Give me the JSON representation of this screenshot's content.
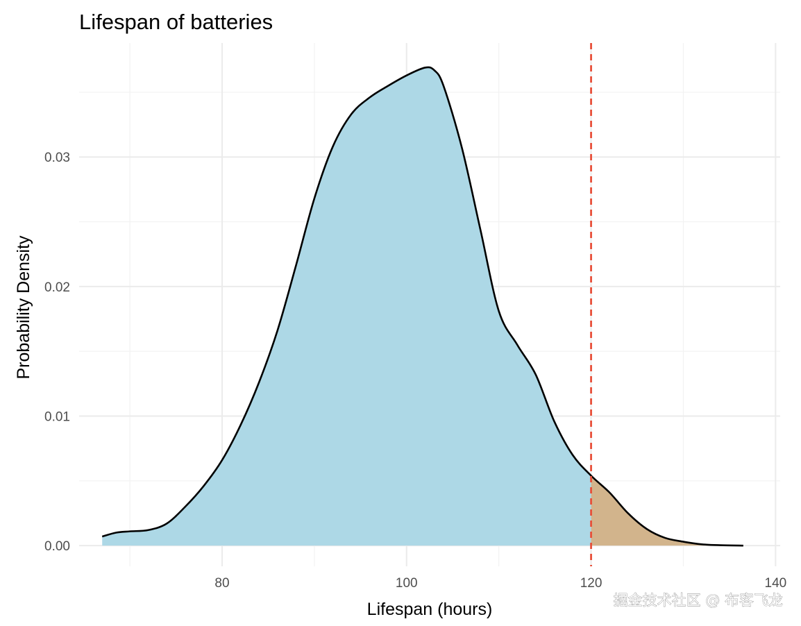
{
  "chart_data": {
    "type": "area",
    "title": "Lifespan of batteries",
    "xlabel": "Lifespan (hours)",
    "ylabel": "Probability Density",
    "xlim": [
      64.5,
      140.5
    ],
    "ylim": [
      -0.0016,
      0.0388
    ],
    "x_ticks": [
      80,
      100,
      120,
      140
    ],
    "y_ticks": [
      0.0,
      0.01,
      0.02,
      0.03
    ],
    "y_tick_labels": [
      "0.00",
      "0.01",
      "0.02",
      "0.03"
    ],
    "grid": true,
    "legend": "none",
    "threshold": 120,
    "series": [
      {
        "fill": "#add8e6",
        "tail_fill": "#d2b48c",
        "line_color": "#000000",
        "threshold_color": "#e8503a",
        "x": [
          67.0,
          68.5,
          70,
          72,
          74,
          76,
          78,
          80,
          82,
          84,
          86,
          88,
          90,
          92,
          94,
          96,
          98,
          100,
          102,
          103,
          104,
          106,
          108,
          110,
          112,
          114,
          116,
          118,
          120,
          122,
          124,
          126,
          128,
          130,
          132,
          134,
          136.5
        ],
        "y": [
          0.0007,
          0.001,
          0.0011,
          0.0012,
          0.0017,
          0.003,
          0.0046,
          0.0066,
          0.0093,
          0.0126,
          0.0166,
          0.0216,
          0.0268,
          0.0308,
          0.0333,
          0.0346,
          0.0355,
          0.0363,
          0.0369,
          0.0367,
          0.0355,
          0.0307,
          0.0244,
          0.0181,
          0.0155,
          0.0132,
          0.0096,
          0.007,
          0.0054,
          0.0041,
          0.0025,
          0.0013,
          0.0006,
          0.0003,
          0.0001,
          3e-05,
          0.0
        ]
      }
    ]
  },
  "watermark": "掘金技术社区 @ 布客飞龙"
}
